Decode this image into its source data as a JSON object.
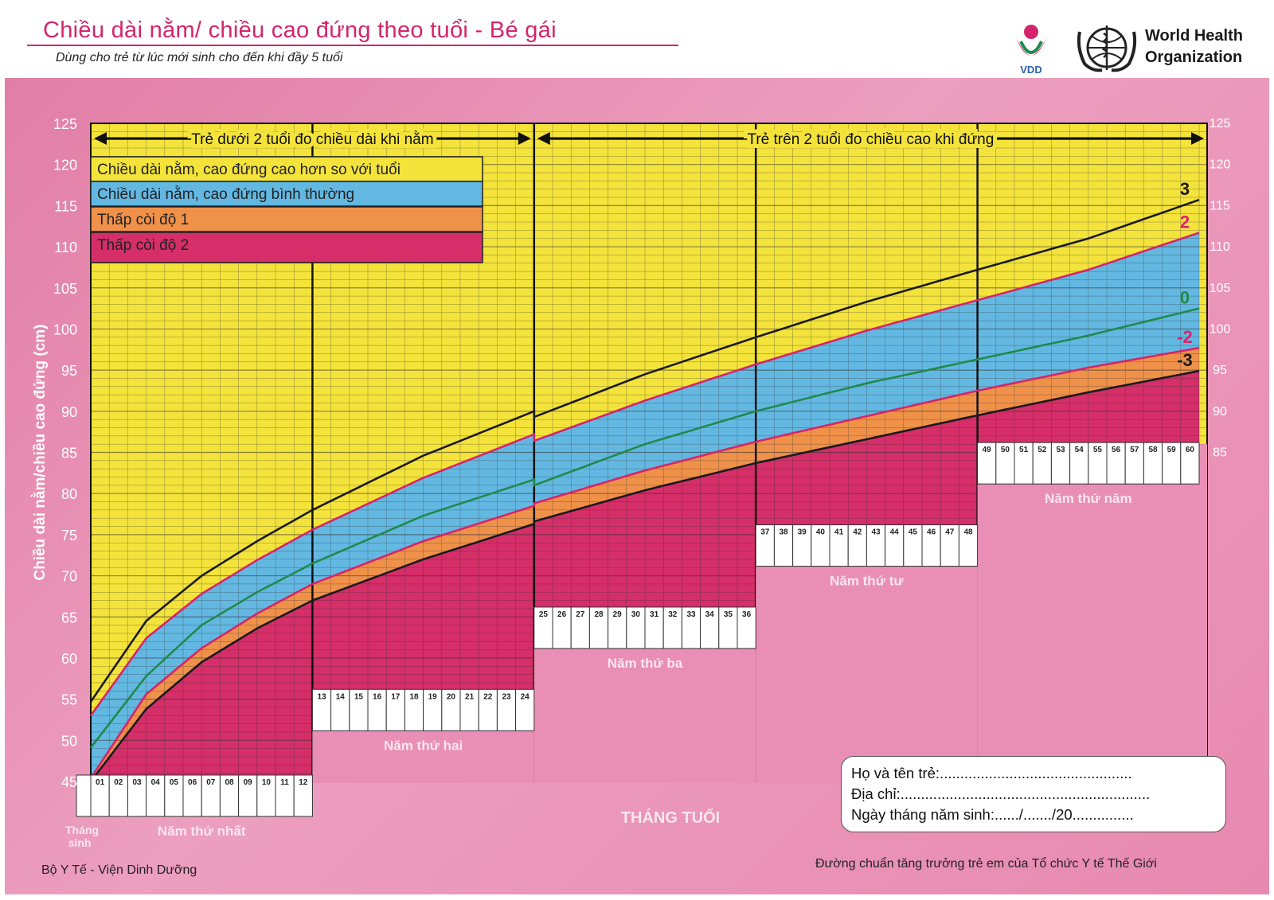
{
  "header": {
    "title": "Chiều dài nằm/ chiều cao đứng theo tuổi - Bé gái",
    "subtitle": "Dùng cho trẻ từ lúc mới sinh cho đến khi đầy 5 tuổi",
    "vdd_logo_text": "VDD",
    "who_line1": "World Health",
    "who_line2": "Organization"
  },
  "legend": {
    "tall": "Chiều dài nằm, cao đứng cao hơn so với tuổi",
    "normal": "Chiều dài nằm, cao đứng bình thường",
    "stunted1": "Thấp còi độ 1",
    "stunted2": "Thấp còi độ 2"
  },
  "arrows": {
    "under2": "Trẻ dưới 2 tuổi đo chiều dài khi nằm",
    "over2": "Trẻ trên 2 tuổi đo chiều cao khi đứng"
  },
  "footer": {
    "left": "Bộ Y Tế - Viện Dinh Dưỡng",
    "right": "Đường chuẩn tăng trưởng trẻ em của Tổ chức Y tế Thế Giới",
    "x_axis_title": "THÁNG TUỔI"
  },
  "info_box": {
    "name": "Họ và tên trẻ:...............................................",
    "address": "Địa chỉ:.............................................................",
    "dob": "Ngày tháng năm sinh:....../......./20..............."
  },
  "colors": {
    "tall_zone": "#f4e33b",
    "normal_zone": "#63b8e2",
    "stunted1_zone": "#f0914a",
    "stunted2_zone": "#d52e68",
    "median_line": "#1f8a4c",
    "sd2_line": "#d6246b",
    "sd3_line": "#1a1a1a",
    "panel": "#e78db3"
  },
  "chart_data": {
    "type": "line",
    "title": "Chiều dài nằm/ chiều cao đứng theo tuổi - Bé gái",
    "ylabel": "Chiều dài nằm/chiều cao đứng (cm)",
    "xlabel": "THÁNG TUỔI",
    "ylim": [
      45,
      125
    ],
    "yticks": [
      45,
      50,
      55,
      60,
      65,
      70,
      75,
      80,
      85,
      90,
      95,
      100,
      105,
      110,
      115,
      120,
      125
    ],
    "xlim": [
      0,
      60
    ],
    "x_start_label": "Tháng sinh",
    "years": [
      {
        "label": "Năm thứ nhất",
        "months": [
          "01",
          "02",
          "03",
          "04",
          "05",
          "06",
          "07",
          "08",
          "09",
          "10",
          "11",
          "12"
        ]
      },
      {
        "label": "Năm thứ hai",
        "months": [
          "13",
          "14",
          "15",
          "16",
          "17",
          "18",
          "19",
          "20",
          "21",
          "22",
          "23",
          "24"
        ]
      },
      {
        "label": "Năm thứ ba",
        "months": [
          "25",
          "26",
          "27",
          "28",
          "29",
          "30",
          "31",
          "32",
          "33",
          "34",
          "35",
          "36"
        ]
      },
      {
        "label": "Năm thứ tư",
        "months": [
          "37",
          "38",
          "39",
          "40",
          "41",
          "42",
          "43",
          "44",
          "45",
          "46",
          "47",
          "48"
        ]
      },
      {
        "label": "Năm thứ năm",
        "months": [
          "49",
          "50",
          "51",
          "52",
          "53",
          "54",
          "55",
          "56",
          "57",
          "58",
          "59",
          "60"
        ]
      }
    ],
    "x": [
      0,
      3,
      6,
      9,
      12,
      18,
      24,
      24,
      30,
      36,
      42,
      48,
      54,
      60
    ],
    "series": [
      {
        "name": "3",
        "color": "#1a1a1a",
        "values": [
          54.7,
          64.5,
          70.0,
          74.2,
          78.0,
          84.6,
          90.0,
          89.3,
          94.5,
          99.0,
          103.3,
          107.2,
          111.0,
          115.7
        ]
      },
      {
        "name": "2",
        "color": "#d6246b",
        "values": [
          53.0,
          62.4,
          67.8,
          71.9,
          75.6,
          81.9,
          87.2,
          86.4,
          91.3,
          95.7,
          99.8,
          103.5,
          107.2,
          111.7
        ]
      },
      {
        "name": "0",
        "color": "#1f8a4c",
        "values": [
          49.1,
          57.8,
          64.0,
          68.0,
          71.5,
          77.3,
          81.7,
          81.0,
          86.0,
          90.0,
          93.4,
          96.3,
          99.2,
          102.5
        ]
      },
      {
        "name": "-2",
        "color": "#d6246b",
        "values": [
          45.4,
          55.6,
          61.2,
          65.4,
          69.0,
          74.2,
          78.5,
          78.8,
          82.8,
          86.3,
          89.4,
          92.5,
          95.3,
          97.7
        ]
      },
      {
        "name": "-3",
        "color": "#1a1a1a",
        "values": [
          45.0,
          53.8,
          59.5,
          63.6,
          67.0,
          72.0,
          76.3,
          76.6,
          80.4,
          83.7,
          86.6,
          89.5,
          92.3,
          94.9
        ]
      }
    ]
  }
}
